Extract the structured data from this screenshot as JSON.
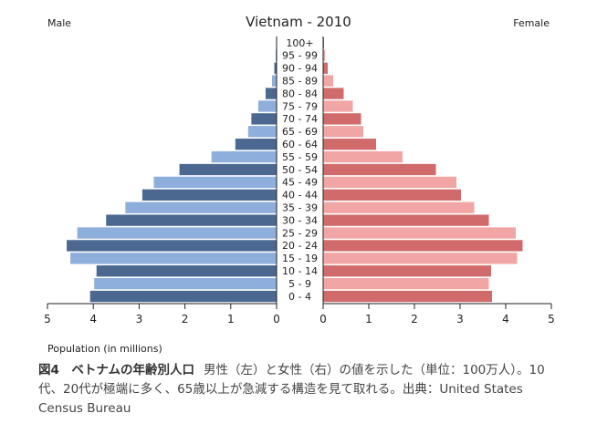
{
  "chart_data": {
    "type": "bar",
    "title": "Vietnam - 2010",
    "left_label": "Male",
    "right_label": "Female",
    "xlabel": "Population (in millions)",
    "xlim": [
      -5,
      5
    ],
    "x_ticks": [
      "5",
      "4",
      "3",
      "2",
      "1",
      "0",
      "1",
      "2",
      "3",
      "4",
      "5"
    ],
    "categories": [
      "100+",
      "95 - 99",
      "90 - 94",
      "85 - 89",
      "80 - 84",
      "75 - 79",
      "70 - 74",
      "65 - 69",
      "60 - 64",
      "55 - 59",
      "50 - 54",
      "45 - 49",
      "40 - 44",
      "35 - 39",
      "30 - 34",
      "25 - 29",
      "20 - 24",
      "15 - 19",
      "10 - 14",
      "5 - 9",
      "0 - 4"
    ],
    "series": [
      {
        "name": "Male",
        "values": [
          0.01,
          0.02,
          0.05,
          0.1,
          0.24,
          0.4,
          0.55,
          0.62,
          0.9,
          1.42,
          2.12,
          2.68,
          2.93,
          3.3,
          3.72,
          4.35,
          4.58,
          4.5,
          3.93,
          3.98,
          4.07
        ]
      },
      {
        "name": "Female",
        "values": [
          0.02,
          0.04,
          0.1,
          0.22,
          0.45,
          0.65,
          0.83,
          0.88,
          1.16,
          1.74,
          2.47,
          2.92,
          3.02,
          3.31,
          3.63,
          4.22,
          4.37,
          4.25,
          3.68,
          3.63,
          3.7
        ]
      }
    ],
    "colors": {
      "male_dark": "#4a6890",
      "male_light": "#8eaedb",
      "female_dark": "#d16b6b",
      "female_light": "#f2a5a5"
    }
  },
  "caption": {
    "lead": "図4　ベトナムの年齢別人口",
    "text": "男性（左）と女性（右）の値を示した（単位：100万人）。10代、20代が極端に多く、65歳以上が急減する構造を見て取れる。出典：United States Census Bureau"
  }
}
